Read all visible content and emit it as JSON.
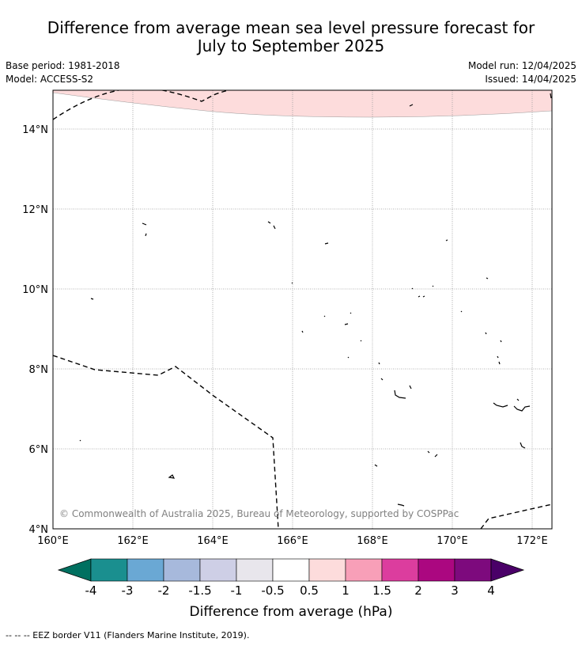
{
  "title_line1": "Difference from average mean sea level pressure forecast for",
  "title_line2": "July to September 2025",
  "base_period": "Base period: 1981-2018",
  "model": "Model: ACCESS-S2",
  "model_run": "Model run: 12/04/2025",
  "issued": "Issued: 14/04/2025",
  "copyright": "© Commonwealth of Australia 2025, Bureau of Meteorology, supported by COSPPac",
  "lon_ticks": [
    "160°E",
    "162°E",
    "164°E",
    "166°E",
    "168°E",
    "170°E",
    "172°E"
  ],
  "lat_ticks": [
    "14°N",
    "12°N",
    "10°N",
    "8°N",
    "6°N",
    "4°N"
  ],
  "colorbar": {
    "label": "Difference from average (hPa)",
    "ticks": [
      "-4",
      "-3",
      "-2",
      "-1.5",
      "-1",
      "-0.5",
      "0.5",
      "1",
      "1.5",
      "2",
      "3",
      "4"
    ],
    "colors": [
      "#1a8f8f",
      "#6aa8d4",
      "#a7b9dc",
      "#cecfe6",
      "#e8e6ec",
      "#ffffff",
      "#fddcdc",
      "#f89fb8",
      "#dc3d9e",
      "#ab0780",
      "#7d0a7d"
    ],
    "low_extend": "#007060",
    "high_extend": "#4a0068"
  },
  "anomaly_color": "#fddcdc",
  "legend_note": "--  --  -- EEZ border V11 (Flanders Marine Institute, 2019)."
}
